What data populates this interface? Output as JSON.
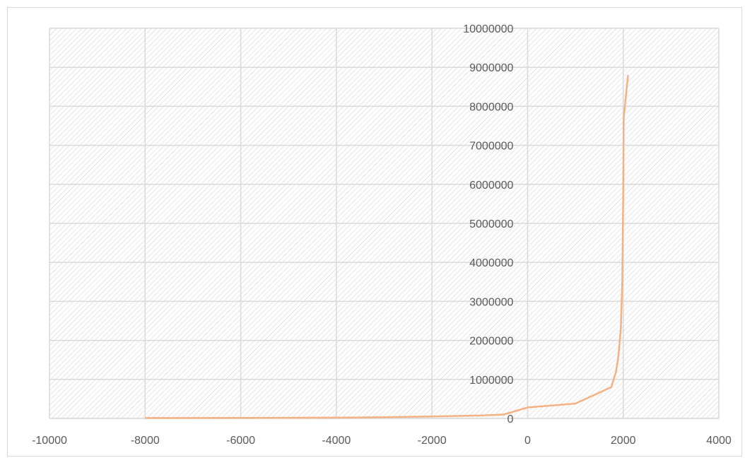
{
  "chart_data": {
    "type": "line",
    "title": "",
    "xlabel": "",
    "ylabel": "",
    "xlim": [
      -10000,
      4000
    ],
    "ylim": [
      0,
      10000000
    ],
    "x_ticks": [
      -10000,
      -8000,
      -6000,
      -4000,
      -2000,
      0,
      2000,
      4000
    ],
    "y_ticks": [
      0,
      1000000,
      2000000,
      3000000,
      4000000,
      5000000,
      6000000,
      7000000,
      8000000,
      9000000,
      10000000
    ],
    "x_tick_labels": [
      "-10000",
      "-8000",
      "-6000",
      "-4000",
      "-2000",
      "0",
      "2000",
      "4000"
    ],
    "y_tick_labels": [
      "0",
      "1000000",
      "2000000",
      "3000000",
      "4000000",
      "5000000",
      "6000000",
      "7000000",
      "8000000",
      "9000000",
      "10000000"
    ],
    "grid": true,
    "plot_background": "hatched",
    "colors": {
      "line": "#f4b183",
      "grid": "#d9d9d9",
      "hatch": "#bfbfbf",
      "text": "#595959"
    },
    "series": [
      {
        "x": [
          -8000,
          -6000,
          -4000,
          -3000,
          -2000,
          -1000,
          -500,
          0,
          1000,
          1750,
          1850,
          1900,
          1950,
          1980,
          2000,
          2010,
          2100
        ],
        "y": [
          10000,
          15000,
          20000,
          30000,
          50000,
          75000,
          100000,
          280000,
          380000,
          800000,
          1200000,
          1600000,
          2300000,
          3500000,
          5700000,
          7700000,
          8800000
        ]
      }
    ]
  }
}
